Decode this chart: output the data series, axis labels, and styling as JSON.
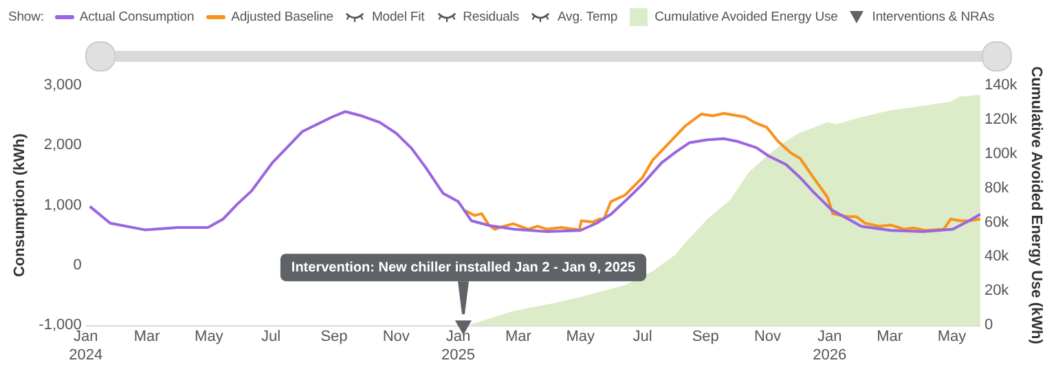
{
  "chart_data": {
    "type": "line",
    "ylabel": "Consumption (kWh)",
    "y2label": "Cumulative Avoided Energy Use (kWh)",
    "legend": "top",
    "grid": false,
    "marker": "none",
    "line_style": "solid",
    "xlim": [
      "2024-01-01",
      "2026-05-29"
    ],
    "xticks": [
      {
        "value": "2024-01-01",
        "label": "Jan 2024"
      },
      {
        "value": "2024-03-01",
        "label": "Mar"
      },
      {
        "value": "2024-05-01",
        "label": "May"
      },
      {
        "value": "2024-07-01",
        "label": "Jul"
      },
      {
        "value": "2024-09-01",
        "label": "Sep"
      },
      {
        "value": "2024-11-01",
        "label": "Nov"
      },
      {
        "value": "2025-01-01",
        "label": "Jan 2025"
      },
      {
        "value": "2025-03-01",
        "label": "Mar"
      },
      {
        "value": "2025-05-01",
        "label": "May"
      },
      {
        "value": "2025-07-01",
        "label": "Jul"
      },
      {
        "value": "2025-09-01",
        "label": "Sep"
      },
      {
        "value": "2025-11-01",
        "label": "Nov"
      },
      {
        "value": "2026-01-01",
        "label": "Jan 2026"
      },
      {
        "value": "2026-03-01",
        "label": "Mar"
      },
      {
        "value": "2026-05-01",
        "label": "May"
      }
    ],
    "ylim": [
      -1000,
      3000
    ],
    "yticks": [
      {
        "value": -1000,
        "label": "-1,000"
      },
      0,
      {
        "value": 1000,
        "label": "1,000"
      },
      {
        "value": 2000,
        "label": "2,000"
      },
      {
        "value": 3000,
        "label": "3,000"
      }
    ],
    "y2lim": [
      0,
      140000
    ],
    "y2ticks": [
      0,
      {
        "value": 20000,
        "label": "20k"
      },
      {
        "value": 40000,
        "label": "40k"
      },
      {
        "value": 60000,
        "label": "60k"
      },
      {
        "value": 80000,
        "label": "80k"
      },
      {
        "value": 100000,
        "label": "100k"
      },
      {
        "value": 120000,
        "label": "120k"
      },
      {
        "value": 140000,
        "label": "140k"
      }
    ],
    "series": [
      {
        "name": "Actual Consumption",
        "type": "line",
        "color": "#9966e0",
        "x": [
          "2024-01-05",
          "2024-01-25",
          "2024-02-28",
          "2024-04-01",
          "2024-04-30",
          "2024-05-15",
          "2024-05-29",
          "2024-06-12",
          "2024-07-02",
          "2024-08-01",
          "2024-08-30",
          "2024-09-12",
          "2024-09-28",
          "2024-10-16",
          "2024-11-01",
          "2024-11-16",
          "2024-11-30",
          "2024-12-17",
          "2025-01-01",
          "2025-01-14",
          "2025-02-01",
          "2025-02-25",
          "2025-03-29",
          "2025-05-01",
          "2025-05-17",
          "2025-05-31",
          "2025-06-16",
          "2025-07-01",
          "2025-07-20",
          "2025-08-03",
          "2025-08-16",
          "2025-09-02",
          "2025-09-19",
          "2025-10-03",
          "2025-10-21",
          "2025-11-02",
          "2025-11-19",
          "2025-12-03",
          "2025-12-16",
          "2026-01-03",
          "2026-01-18",
          "2026-02-01",
          "2026-03-02",
          "2026-04-03",
          "2026-05-02",
          "2026-05-18",
          "2026-05-29"
        ],
        "values": [
          980,
          700,
          590,
          630,
          630,
          770,
          1020,
          1240,
          1700,
          2230,
          2470,
          2560,
          2490,
          2380,
          2200,
          1950,
          1630,
          1200,
          1060,
          740,
          660,
          600,
          560,
          580,
          700,
          850,
          1100,
          1350,
          1710,
          1890,
          2040,
          2090,
          2110,
          2060,
          1960,
          1820,
          1680,
          1460,
          1220,
          920,
          780,
          650,
          580,
          560,
          600,
          740,
          850
        ]
      },
      {
        "name": "Adjusted Baseline",
        "type": "line",
        "color": "#f7931e",
        "x": [
          "2025-01-08",
          "2025-01-17",
          "2025-01-24",
          "2025-01-31",
          "2025-02-06",
          "2025-02-15",
          "2025-02-24",
          "2025-03-11",
          "2025-03-20",
          "2025-03-29",
          "2025-04-12",
          "2025-04-30",
          "2025-05-02",
          "2025-05-13",
          "2025-05-20",
          "2025-05-24",
          "2025-05-31",
          "2025-06-14",
          "2025-07-01",
          "2025-07-11",
          "2025-07-29",
          "2025-08-12",
          "2025-08-28",
          "2025-09-08",
          "2025-09-19",
          "2025-10-10",
          "2025-10-19",
          "2025-10-31",
          "2025-11-11",
          "2025-11-24",
          "2025-12-03",
          "2025-12-16",
          "2025-12-30",
          "2026-01-04",
          "2026-01-18",
          "2026-01-27",
          "2026-02-05",
          "2026-02-18",
          "2026-03-02",
          "2026-03-15",
          "2026-03-24",
          "2026-04-05",
          "2026-04-23",
          "2026-04-30",
          "2026-05-09",
          "2026-05-18",
          "2026-05-29"
        ],
        "values": [
          910,
          830,
          860,
          670,
          600,
          650,
          690,
          600,
          650,
          600,
          630,
          590,
          740,
          720,
          770,
          770,
          1060,
          1170,
          1460,
          1750,
          2070,
          2320,
          2520,
          2490,
          2530,
          2470,
          2380,
          2300,
          2070,
          1870,
          1780,
          1460,
          1130,
          860,
          810,
          810,
          700,
          650,
          670,
          600,
          620,
          580,
          600,
          770,
          740,
          740,
          770
        ]
      },
      {
        "name": "Cumulative Avoided Energy Use",
        "type": "area",
        "axis": "y2",
        "color": "#dcebc8",
        "x": [
          "2025-01-13",
          "2025-02-25",
          "2025-04-01",
          "2025-05-01",
          "2025-06-14",
          "2025-07-11",
          "2025-08-03",
          "2025-08-16",
          "2025-09-04",
          "2025-09-26",
          "2025-10-14",
          "2025-11-02",
          "2025-11-19",
          "2025-12-03",
          "2025-12-30",
          "2026-01-08",
          "2026-02-01",
          "2026-03-02",
          "2026-04-07",
          "2026-04-30",
          "2026-05-09",
          "2026-05-29"
        ],
        "values": [
          0,
          8000,
          12000,
          16000,
          23000,
          31000,
          41000,
          50000,
          62000,
          73000,
          89000,
          99000,
          107000,
          112000,
          118000,
          117000,
          121000,
          125000,
          128000,
          130000,
          133000,
          134000
        ]
      },
      {
        "name": "Interventions & NRAs",
        "type": "scatter",
        "marker": "triangle",
        "color": "#5f6368",
        "x": [
          "2025-01-06"
        ],
        "values": [
          -1000
        ]
      }
    ],
    "annotations": [
      "Show:",
      "Model Fit",
      "Residuals",
      "Avg. Temp",
      {
        "text": "Intervention: New chiller installed Jan 2 - Jan 9, 2025",
        "x": "2025-01-06",
        "y": -1000
      }
    ]
  }
}
